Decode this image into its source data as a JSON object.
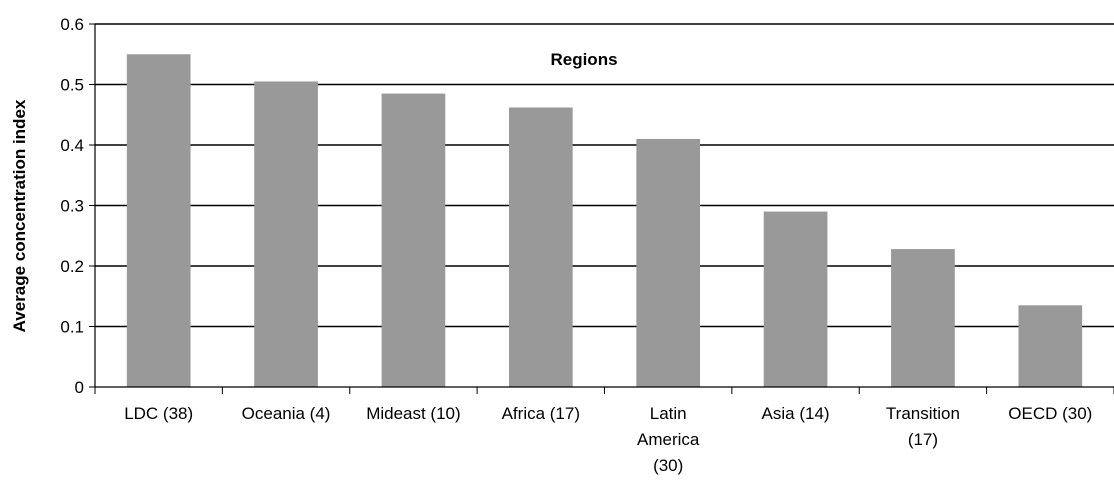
{
  "chart_data": {
    "type": "bar",
    "title": "Regions",
    "xlabel": "",
    "ylabel": "Average concentration index",
    "ylim": [
      0,
      0.6
    ],
    "yticks": [
      0,
      0.1,
      0.2,
      0.3,
      0.4,
      0.5,
      0.6
    ],
    "ytick_labels": [
      "0",
      "0.1",
      "0.2",
      "0.3",
      "0.4",
      "0.5",
      "0.6"
    ],
    "grid": true,
    "categories": [
      "LDC (38)",
      "Oceania (4)",
      "Mideast (10)",
      "Africa (17)",
      "Latin America (30)",
      "Asia (14)",
      "Transition (17)",
      "OECD (30)"
    ],
    "category_lines": [
      [
        "LDC (38)"
      ],
      [
        "Oceania (4)"
      ],
      [
        "Mideast (10)"
      ],
      [
        "Africa (17)"
      ],
      [
        "Latin",
        "America",
        "(30)"
      ],
      [
        "Asia (14)"
      ],
      [
        "Transition",
        "(17)"
      ],
      [
        "OECD (30)"
      ]
    ],
    "values": [
      0.55,
      0.505,
      0.485,
      0.462,
      0.41,
      0.29,
      0.228,
      0.135
    ],
    "bar_color": "#999999"
  }
}
